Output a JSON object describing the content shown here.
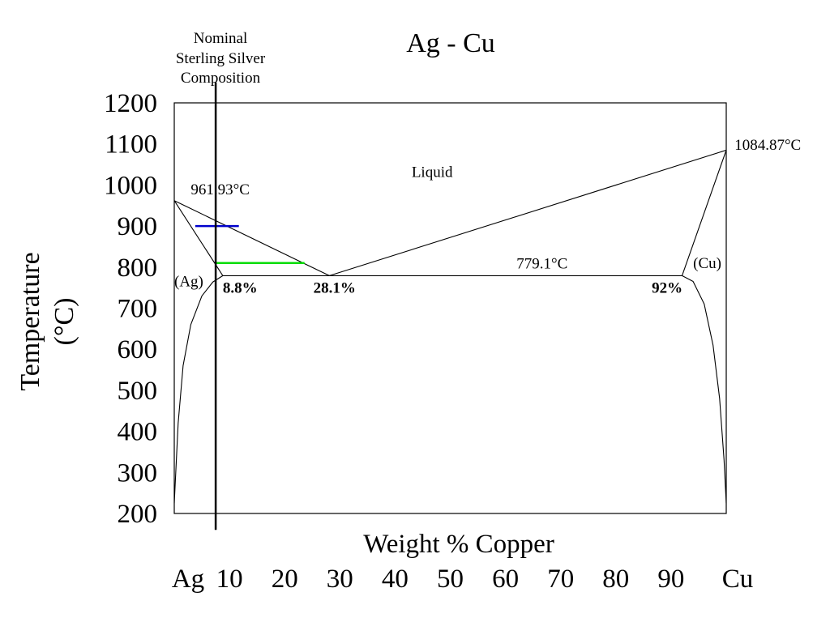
{
  "chart_data": {
    "type": "line",
    "title": "Ag - Cu",
    "xlabel": "Weight % Copper",
    "ylabel": [
      "Temperature",
      "(°C)"
    ],
    "xlim": [
      0,
      100
    ],
    "ylim": [
      200,
      1200
    ],
    "grid": false,
    "y_ticks": [
      {
        "value": 1200,
        "label": "1200"
      },
      {
        "value": 1100,
        "label": "1100"
      },
      {
        "value": 1000,
        "label": "1000"
      },
      {
        "value": 900,
        "label": "900"
      },
      {
        "value": 800,
        "label": "800"
      },
      {
        "value": 700,
        "label": "700"
      },
      {
        "value": 600,
        "label": "600"
      },
      {
        "value": 500,
        "label": "500"
      },
      {
        "value": 400,
        "label": "400"
      },
      {
        "value": 300,
        "label": "300"
      },
      {
        "value": 200,
        "label": "200"
      }
    ],
    "x_ticks": [
      {
        "value": 0,
        "label": "Ag"
      },
      {
        "value": 10,
        "label": "10"
      },
      {
        "value": 20,
        "label": "20"
      },
      {
        "value": 30,
        "label": "30"
      },
      {
        "value": 40,
        "label": "40"
      },
      {
        "value": 50,
        "label": "50"
      },
      {
        "value": 60,
        "label": "60"
      },
      {
        "value": 70,
        "label": "70"
      },
      {
        "value": 80,
        "label": "80"
      },
      {
        "value": 90,
        "label": "90"
      },
      {
        "value": 100,
        "label": "Cu"
      }
    ],
    "lines": [
      {
        "name": "liquidus-ag",
        "color": "#000000",
        "points": [
          [
            0,
            961.93
          ],
          [
            28.1,
            779.1
          ]
        ]
      },
      {
        "name": "liquidus-cu",
        "color": "#000000",
        "points": [
          [
            28.1,
            779.1
          ],
          [
            100,
            1084.87
          ]
        ]
      },
      {
        "name": "solidus-ag",
        "color": "#000000",
        "points": [
          [
            0,
            961.93
          ],
          [
            8.8,
            779.1
          ]
        ]
      },
      {
        "name": "solidus-cu",
        "color": "#000000",
        "points": [
          [
            92,
            779.1
          ],
          [
            100,
            1084.87
          ]
        ]
      },
      {
        "name": "eutectic-isotherm",
        "color": "#000000",
        "points": [
          [
            8.8,
            779.1
          ],
          [
            92,
            779.1
          ]
        ]
      },
      {
        "name": "solvus-ag",
        "color": "#000000",
        "points": [
          [
            0,
            225
          ],
          [
            0.7,
            420
          ],
          [
            1.6,
            560
          ],
          [
            3,
            660
          ],
          [
            5,
            730
          ],
          [
            7,
            764
          ],
          [
            8.8,
            779.1
          ]
        ]
      },
      {
        "name": "solvus-cu",
        "color": "#000000",
        "points": [
          [
            92,
            779.1
          ],
          [
            94,
            765
          ],
          [
            96,
            710
          ],
          [
            97.6,
            610
          ],
          [
            98.8,
            480
          ],
          [
            99.6,
            330
          ],
          [
            100,
            225
          ]
        ]
      },
      {
        "name": "tie-line-900",
        "color": "#0000cc",
        "points": [
          [
            3.8,
            900
          ],
          [
            11.7,
            900
          ]
        ]
      },
      {
        "name": "tie-line-800",
        "color": "#00dd00",
        "points": [
          [
            7.5,
            810
          ],
          [
            23.6,
            810
          ]
        ]
      },
      {
        "name": "nominal-composition",
        "color": "#000000",
        "points": [
          [
            7.5,
            160
          ],
          [
            7.5,
            1250
          ]
        ]
      }
    ],
    "annotations": [
      {
        "text": "961.93°C",
        "x": 3,
        "y": 977,
        "anchor": "start",
        "style": "annot"
      },
      {
        "text": "Liquid",
        "x": 43,
        "y": 1020,
        "anchor": "start",
        "style": "annot"
      },
      {
        "text": "1084.87°C",
        "x": 101.5,
        "y": 1086,
        "anchor": "start",
        "style": "annot"
      },
      {
        "text": "779.1°C",
        "x": 62,
        "y": 797,
        "anchor": "start",
        "style": "annot"
      },
      {
        "text": "(Ag)",
        "x": 0,
        "y": 753,
        "anchor": "start",
        "style": "annot"
      },
      {
        "text": "(Cu)",
        "x": 94,
        "y": 798,
        "anchor": "start",
        "style": "annot"
      },
      {
        "text": "8.8%",
        "x": 8.8,
        "y": 737,
        "anchor": "start",
        "style": "pct"
      },
      {
        "text": "28.1%",
        "x": 25.2,
        "y": 737,
        "anchor": "start",
        "style": "pct"
      },
      {
        "text": "92%",
        "x": 86.5,
        "y": 737,
        "anchor": "start",
        "style": "pct"
      }
    ],
    "note": [
      "Nominal",
      "Sterling Silver",
      "Composition"
    ]
  }
}
